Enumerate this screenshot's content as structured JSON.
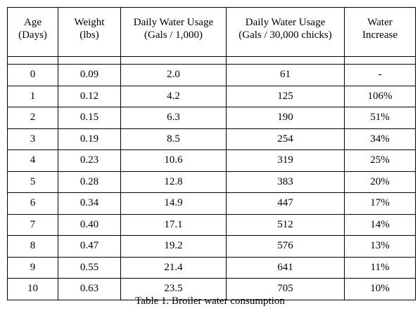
{
  "table": {
    "headers": [
      [
        "Age",
        "(Days)"
      ],
      [
        "Weight",
        "(lbs)"
      ],
      [
        "Daily Water Usage",
        "(Gals / 1,000)"
      ],
      [
        "Daily Water Usage",
        "(Gals / 30,000 chicks)"
      ],
      [
        "Water",
        "Increase"
      ]
    ],
    "rows": [
      [
        "0",
        "0.09",
        "2.0",
        "61",
        "-"
      ],
      [
        "1",
        "0.12",
        "4.2",
        "125",
        "106%"
      ],
      [
        "2",
        "0.15",
        "6.3",
        "190",
        "51%"
      ],
      [
        "3",
        "0.19",
        "8.5",
        "254",
        "34%"
      ],
      [
        "4",
        "0.23",
        "10.6",
        "319",
        "25%"
      ],
      [
        "5",
        "0.28",
        "12.8",
        "383",
        "20%"
      ],
      [
        "6",
        "0.34",
        "14.9",
        "447",
        "17%"
      ],
      [
        "7",
        "0.40",
        "17.1",
        "512",
        "14%"
      ],
      [
        "8",
        "0.47",
        "19.2",
        "576",
        "13%"
      ],
      [
        "9",
        "0.55",
        "21.4",
        "641",
        "11%"
      ],
      [
        "10",
        "0.63",
        "23.5",
        "705",
        "10%"
      ]
    ]
  },
  "caption": "Table 1.  Broiler water consumption"
}
